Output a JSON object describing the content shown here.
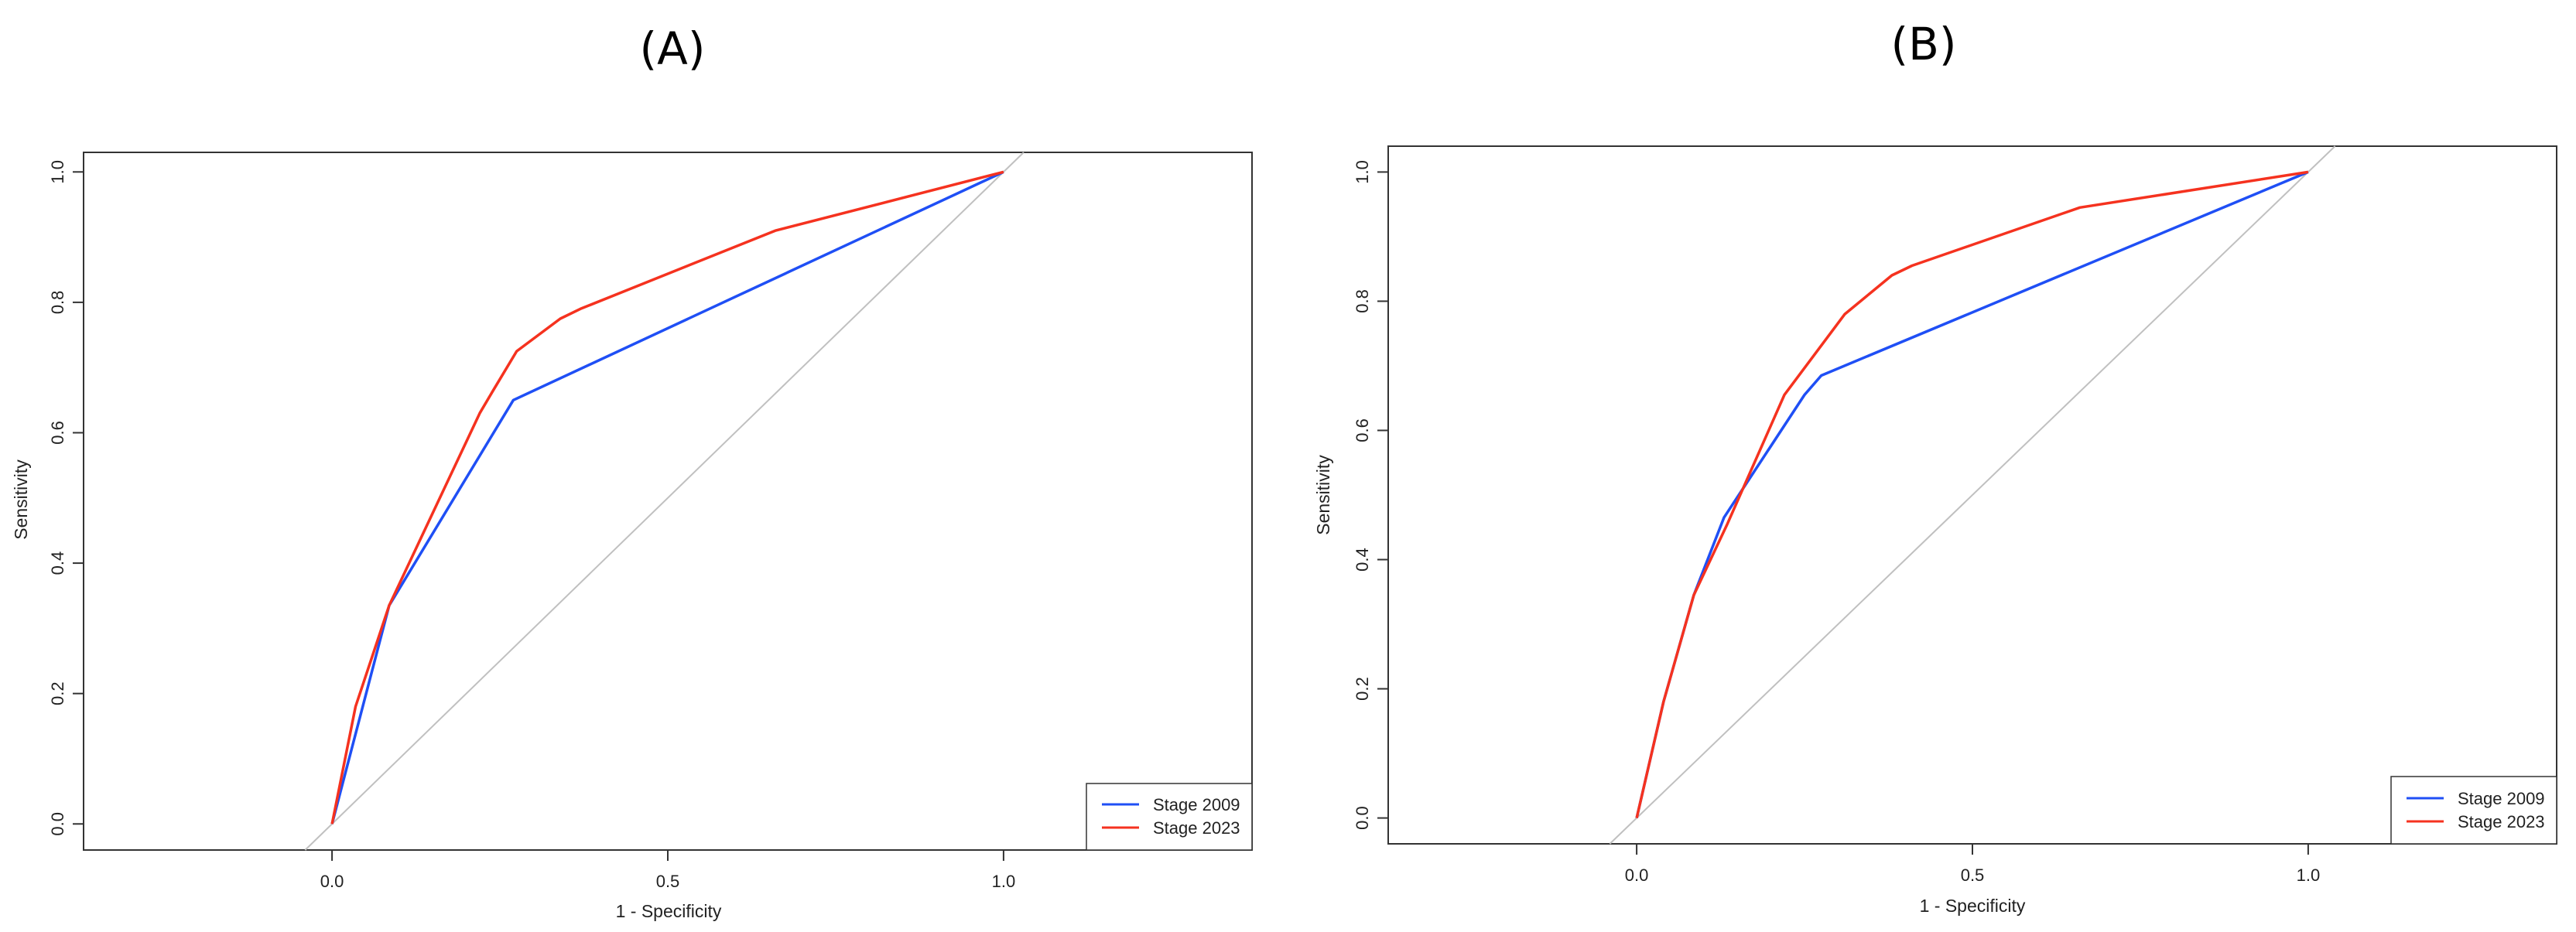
{
  "colors": {
    "stage_2009": "#1f4ff5",
    "stage_2023": "#f5321f",
    "diagonal": "#c0c0c0",
    "frame": "#333333"
  },
  "chart_data": [
    {
      "type": "line",
      "title": "(A)",
      "xlabel": "1 - Specificity",
      "ylabel": "Sensitivity",
      "xlim": [
        -0.37,
        1.37
      ],
      "ylim": [
        -0.04,
        1.03
      ],
      "xticks": [
        0.0,
        0.5,
        1.0
      ],
      "xtick_labels": [
        "0.0",
        "0.5",
        "1.0"
      ],
      "yticks": [
        0.0,
        0.2,
        0.4,
        0.6,
        0.8,
        1.0
      ],
      "ytick_labels": [
        "0.0",
        "0.2",
        "0.4",
        "0.6",
        "0.8",
        "1.0"
      ],
      "grid": false,
      "reference_line": "diagonal y = x",
      "legend_position": "bottom-right",
      "series": [
        {
          "name": "Stage 2009",
          "color_key": "stage_2009",
          "x": [
            0.0,
            0.085,
            0.27,
            1.0
          ],
          "y": [
            0.0,
            0.335,
            0.65,
            1.0
          ]
        },
        {
          "name": "Stage 2023",
          "color_key": "stage_2023",
          "x": [
            0.0,
            0.035,
            0.085,
            0.22,
            0.24,
            0.275,
            0.34,
            0.37,
            0.66,
            1.0
          ],
          "y": [
            0.0,
            0.18,
            0.335,
            0.63,
            0.665,
            0.725,
            0.775,
            0.79,
            0.91,
            1.0
          ]
        }
      ]
    },
    {
      "type": "line",
      "title": "(B)",
      "xlabel": "1 - Specificity",
      "ylabel": "Sensitivity",
      "xlim": [
        -0.37,
        1.37
      ],
      "ylim": [
        -0.04,
        1.04
      ],
      "xticks": [
        0.0,
        0.5,
        1.0
      ],
      "xtick_labels": [
        "0.0",
        "0.5",
        "1.0"
      ],
      "yticks": [
        0.0,
        0.2,
        0.4,
        0.6,
        0.8,
        1.0
      ],
      "ytick_labels": [
        "0.0",
        "0.2",
        "0.4",
        "0.6",
        "0.8",
        "1.0"
      ],
      "grid": false,
      "reference_line": "diagonal y = x",
      "legend_position": "bottom-right",
      "series": [
        {
          "name": "Stage 2009",
          "color_key": "stage_2009",
          "x": [
            0.0,
            0.04,
            0.085,
            0.13,
            0.25,
            0.275,
            1.0
          ],
          "y": [
            0.0,
            0.18,
            0.345,
            0.465,
            0.655,
            0.685,
            1.0
          ]
        },
        {
          "name": "Stage 2023",
          "color_key": "stage_2023",
          "x": [
            0.0,
            0.04,
            0.085,
            0.135,
            0.22,
            0.31,
            0.38,
            0.41,
            0.66,
            1.0
          ],
          "y": [
            0.0,
            0.18,
            0.345,
            0.455,
            0.655,
            0.78,
            0.84,
            0.855,
            0.945,
            1.0
          ]
        }
      ]
    }
  ]
}
